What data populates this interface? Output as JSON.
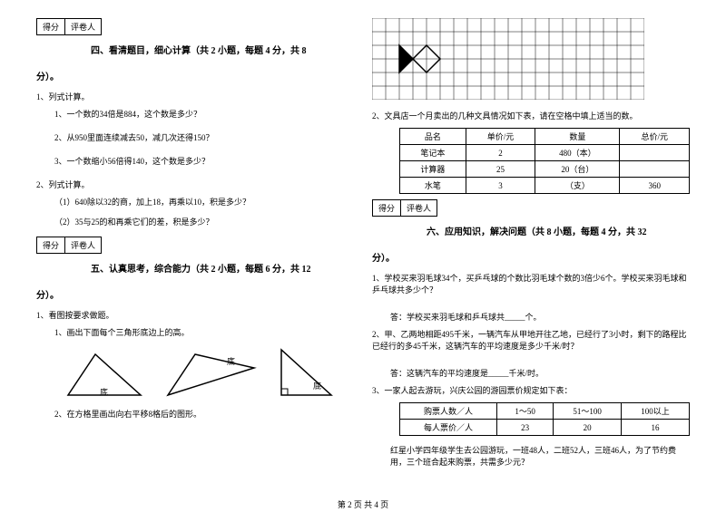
{
  "score": {
    "label1": "得分",
    "label2": "评卷人"
  },
  "section4": {
    "title": "四、看清题目，细心计算（共 2 小题，每题 4 分，共 8",
    "end": "分）。",
    "q1": "1、列式计算。",
    "q1_1": "1、一个数的34倍是884，这个数是多少？",
    "q1_2": "2、从950里面连续减去50，减几次还得150？",
    "q1_3": "3、一个数缩小56倍得140，这个数是多少？",
    "q2": "2、列式计算。",
    "q2_1": "（1）640除以32的商，加上18，再乘以10，积是多少？",
    "q2_2": "（2）35与25的和再乘它们的差，积是多少？"
  },
  "section5": {
    "title": "五、认真思考，综合能力（共 2 小题，每题 6 分，共 12",
    "end": "分）。",
    "q1": "1、看图按要求做题。",
    "q1_1": "1、画出下面每个三角形底边上的高。",
    "base": "底",
    "q1_2": "2、在方格里画出向右平移8格后的图形。"
  },
  "section5_right": {
    "q2": "2、文具店一个月卖出的几种文具情况如下表，请在空格中填上适当的数。",
    "table": {
      "headers": [
        "品名",
        "单价/元",
        "数量",
        "总价/元"
      ],
      "rows": [
        [
          "笔记本",
          "2",
          "480（本）",
          ""
        ],
        [
          "计算器",
          "25",
          "20（台）",
          ""
        ],
        [
          "水笔",
          "3",
          "（支）",
          "360"
        ]
      ]
    }
  },
  "section6": {
    "title": "六、应用知识，解决问题（共 8 小题，每题 4 分，共 32",
    "end": "分）。",
    "q1": "1、学校买来羽毛球34个，买乒乓球的个数比羽毛球个数的3倍少6个。学校买来羽毛球和乒乓球共多少个？",
    "a1": "答：学校买来羽毛球和乒乓球共_____个。",
    "q2": "2、甲、乙两地相距495千米，一辆汽车从甲地开往乙地，已经行了3小时，剩下的路程比已经行的多45千米，这辆汽车的平均速度是多少千米/时？",
    "a2": "答：这辆汽车的平均速度是_____千米/时。",
    "q3": "3、一家人起去游玩，兴庆公园的游园票价规定如下表：",
    "table": {
      "headers": [
        "购票人数／人",
        "1～50",
        "51～100",
        "100以上"
      ],
      "rows": [
        [
          "每人票价／人",
          "23",
          "20",
          "16"
        ]
      ]
    },
    "q3_text": "红星小学四年级学生去公园游玩，一班48人，二班52人，三班46人，为了节约费用，三个班合起来购票，共需多少元？"
  },
  "footer": "第 2 页 共 4 页",
  "colors": {
    "text": "#000000",
    "bg": "#ffffff",
    "line": "#000000"
  }
}
